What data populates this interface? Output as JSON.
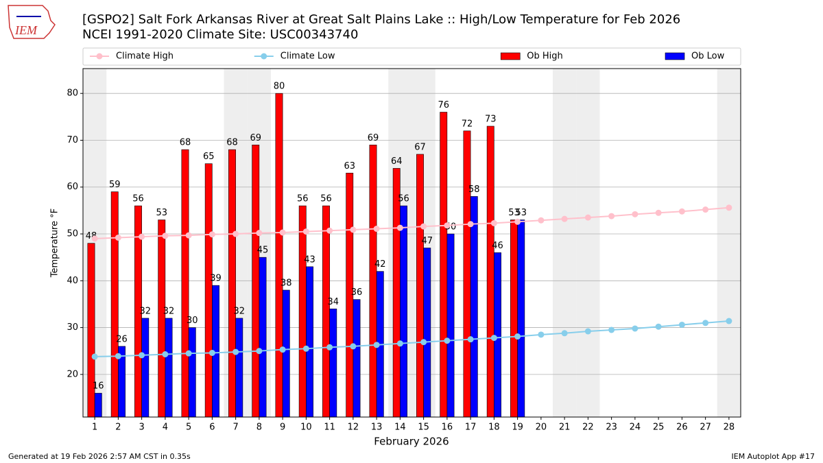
{
  "chart_data": {
    "type": "bar_line",
    "title": "[GSPO2] Salt Fork Arkansas River at Great Salt Plains Lake :: High/Low Temperature for Feb 2026",
    "subtitle": "NCEI 1991-2020 Climate Site: USC00343740",
    "xlabel": "February 2026",
    "ylabel": "Temperature °F",
    "x": [
      1,
      2,
      3,
      4,
      5,
      6,
      7,
      8,
      9,
      10,
      11,
      12,
      13,
      14,
      15,
      16,
      17,
      18,
      19,
      20,
      21,
      22,
      23,
      24,
      25,
      26,
      27,
      28
    ],
    "series": [
      {
        "name": "Climate High",
        "color": "#ffc0cb",
        "kind": "line",
        "values": [
          49.0,
          49.2,
          49.4,
          49.6,
          49.7,
          49.9,
          50.0,
          50.2,
          50.3,
          50.5,
          50.7,
          50.9,
          51.1,
          51.3,
          51.6,
          51.8,
          52.1,
          52.3,
          52.6,
          52.9,
          53.2,
          53.5,
          53.8,
          54.2,
          54.5,
          54.8,
          55.2,
          55.6
        ]
      },
      {
        "name": "Climate Low",
        "color": "#87ceeb",
        "kind": "line",
        "values": [
          23.8,
          23.9,
          24.1,
          24.3,
          24.5,
          24.6,
          24.8,
          25.0,
          25.3,
          25.5,
          25.8,
          26.0,
          26.3,
          26.6,
          26.9,
          27.2,
          27.5,
          27.8,
          28.1,
          28.5,
          28.8,
          29.2,
          29.5,
          29.8,
          30.2,
          30.6,
          31.0,
          31.4
        ]
      },
      {
        "name": "Ob High",
        "color": "#ff0000",
        "kind": "bar",
        "values": [
          48,
          59,
          56,
          53,
          68,
          65,
          68,
          69,
          80,
          56,
          56,
          63,
          69,
          64,
          67,
          76,
          72,
          73,
          53,
          null,
          null,
          null,
          null,
          null,
          null,
          null,
          null,
          null
        ]
      },
      {
        "name": "Ob Low",
        "color": "#0000ff",
        "kind": "bar",
        "values": [
          16,
          26,
          32,
          32,
          30,
          39,
          32,
          45,
          38,
          43,
          34,
          36,
          42,
          56,
          47,
          50,
          58,
          46,
          53,
          null,
          null,
          null,
          null,
          null,
          null,
          null,
          null,
          null
        ]
      }
    ],
    "xlim": [
      0.5,
      28.5
    ],
    "xticks": [
      1,
      2,
      3,
      4,
      5,
      6,
      7,
      8,
      9,
      10,
      11,
      12,
      13,
      14,
      15,
      16,
      17,
      18,
      19,
      20,
      21,
      22,
      23,
      24,
      25,
      26,
      27,
      28
    ],
    "ylim": [
      10.9,
      85.3
    ],
    "yticks": [
      20,
      30,
      40,
      50,
      60,
      70,
      80
    ],
    "grid": true,
    "legend": "top",
    "shaded_days": [
      1,
      7,
      8,
      14,
      15,
      21,
      22,
      28
    ]
  },
  "footer_left": "Generated at 19 Feb 2026 2:57 AM CST in 0.35s",
  "footer_right": "IEM Autoplot App #17",
  "logo_text": "IEM"
}
